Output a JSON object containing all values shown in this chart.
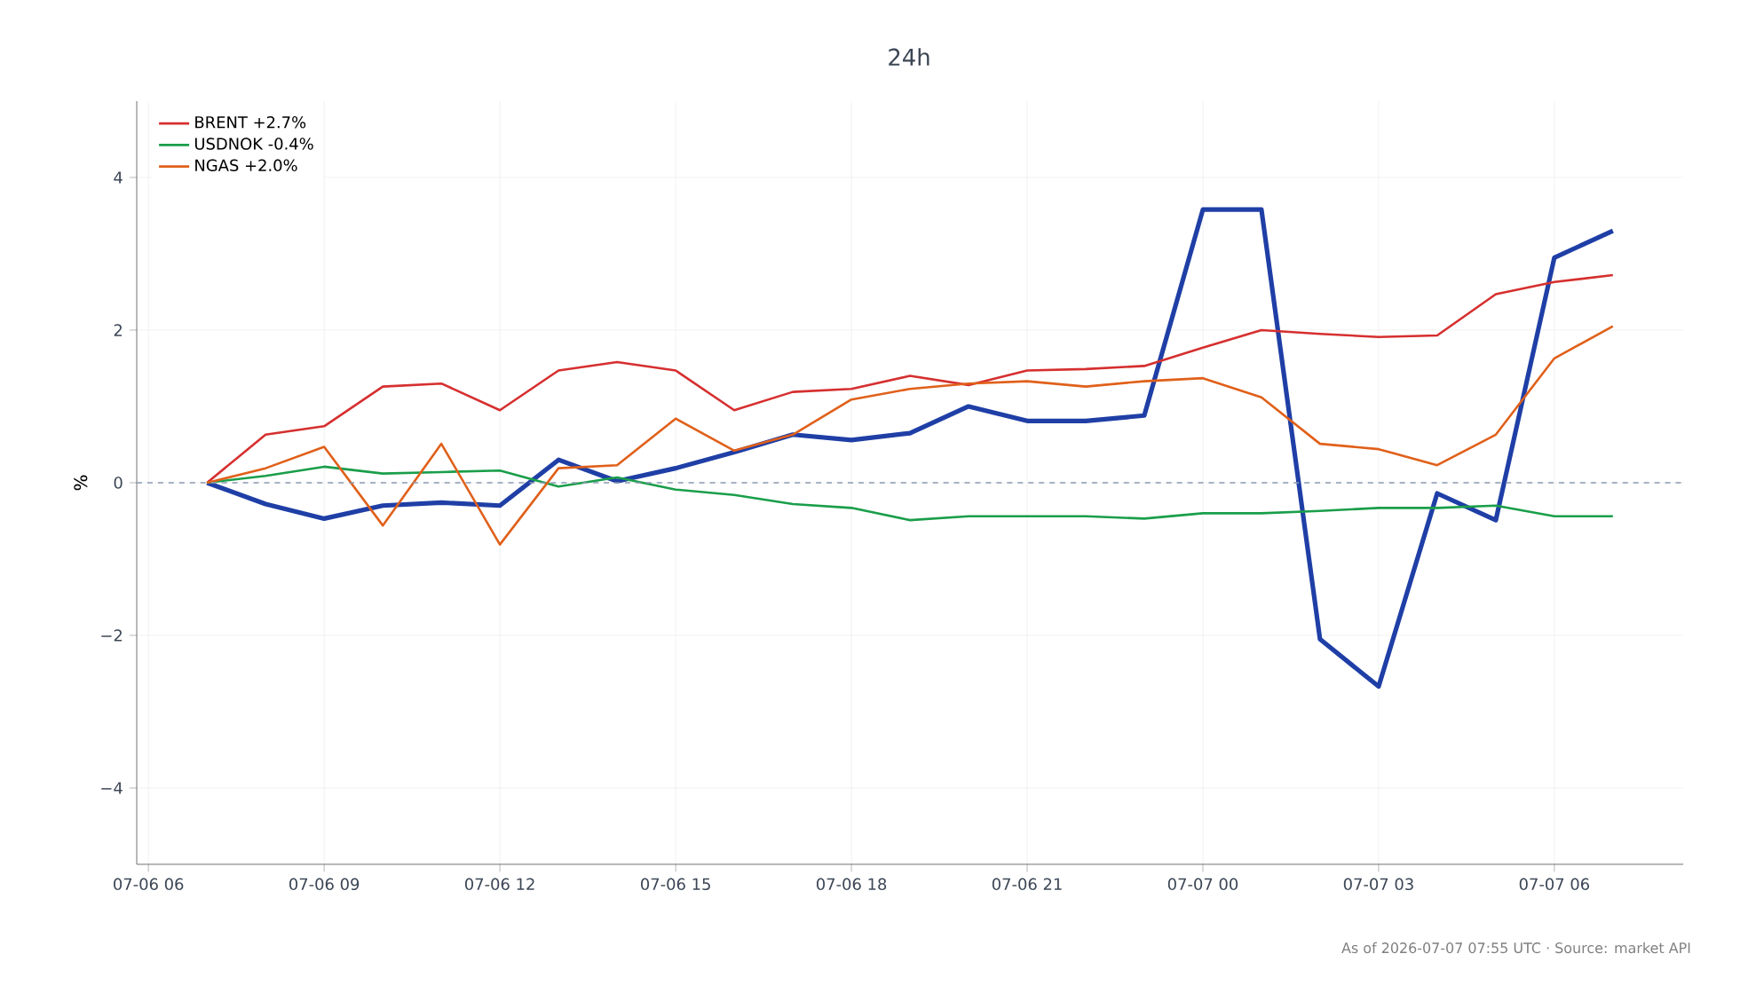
{
  "chart_data": {
    "type": "line",
    "title": "24h",
    "ylabel": "%",
    "x": [
      "2026-07-06T07:00",
      "2026-07-06T08:00",
      "2026-07-06T09:00",
      "2026-07-06T10:00",
      "2026-07-06T11:00",
      "2026-07-06T12:00",
      "2026-07-06T13:00",
      "2026-07-06T14:00",
      "2026-07-06T15:00",
      "2026-07-06T16:00",
      "2026-07-06T17:00",
      "2026-07-06T18:00",
      "2026-07-06T19:00",
      "2026-07-06T20:00",
      "2026-07-06T21:00",
      "2026-07-06T22:00",
      "2026-07-06T23:00",
      "2026-07-07T00:00",
      "2026-07-07T01:00",
      "2026-07-07T02:00",
      "2026-07-07T03:00",
      "2026-07-07T04:00",
      "2026-07-07T05:00",
      "2026-07-07T06:00",
      "2026-07-07T07:00"
    ],
    "series": [
      {
        "color": "#1f3fa6",
        "values": [
          0,
          -0.28,
          -0.47,
          -0.3,
          -0.26,
          -0.3,
          0.3,
          0.02,
          0.19,
          0.4,
          0.63,
          0.56,
          0.65,
          1.0,
          0.81,
          0.81,
          0.88,
          3.58,
          3.58,
          -2.05,
          -2.67,
          -0.14,
          -0.49,
          2.95,
          3.3
        ]
      },
      {
        "name": "BRENT +2.7%",
        "color": "#d62f2f",
        "values": [
          0,
          0.63,
          0.74,
          1.26,
          1.3,
          0.95,
          1.47,
          1.58,
          1.47,
          0.95,
          1.19,
          1.23,
          1.4,
          1.28,
          1.47,
          1.49,
          1.53,
          1.77,
          2.0,
          1.95,
          1.91,
          1.93,
          2.47,
          2.63,
          2.72
        ]
      },
      {
        "name": "USDNOK -0.4%",
        "color": "#1a9e4a",
        "values": [
          0,
          0.09,
          0.21,
          0.12,
          0.14,
          0.16,
          -0.05,
          0.07,
          -0.09,
          -0.16,
          -0.28,
          -0.33,
          -0.49,
          -0.44,
          -0.44,
          -0.44,
          -0.47,
          -0.4,
          -0.4,
          -0.37,
          -0.33,
          -0.33,
          -0.3,
          -0.44,
          -0.44
        ]
      },
      {
        "name": "NGAS +2.0%",
        "color": "#e0601a",
        "values": [
          0,
          0.19,
          0.47,
          -0.56,
          0.51,
          -0.81,
          0.19,
          0.23,
          0.84,
          0.42,
          0.63,
          1.09,
          1.23,
          1.3,
          1.33,
          1.26,
          1.33,
          1.37,
          1.12,
          0.51,
          0.44,
          0.23,
          0.63,
          1.63,
          2.05
        ]
      }
    ],
    "xlim": [
      "2026-07-06T05:48",
      "2026-07-07T08:12"
    ],
    "ylim": [
      -5,
      5
    ],
    "xticks": [
      {
        "value": "2026-07-06T06:00",
        "label": "07-06 06"
      },
      {
        "value": "2026-07-06T09:00",
        "label": "07-06 09"
      },
      {
        "value": "2026-07-06T12:00",
        "label": "07-06 12"
      },
      {
        "value": "2026-07-06T15:00",
        "label": "07-06 15"
      },
      {
        "value": "2026-07-06T18:00",
        "label": "07-06 18"
      },
      {
        "value": "2026-07-06T21:00",
        "label": "07-06 21"
      },
      {
        "value": "2026-07-07T00:00",
        "label": "07-07 00"
      },
      {
        "value": "2026-07-07T03:00",
        "label": "07-07 03"
      },
      {
        "value": "2026-07-07T06:00",
        "label": "07-07 06"
      }
    ],
    "yticks": [
      {
        "value": -4,
        "label": "−4"
      },
      {
        "value": -2,
        "label": "−2"
      },
      0,
      2,
      4
    ],
    "ref_lines": [
      {
        "axis": "y",
        "value": 0,
        "color": "#8a9bb0",
        "line_style": "dashed"
      }
    ],
    "grid": true,
    "legend": "top left",
    "marker": "none",
    "line_style": "solid",
    "annotations": [
      "As of 2026-07-07 07:55 UTC · Source: market API"
    ]
  }
}
